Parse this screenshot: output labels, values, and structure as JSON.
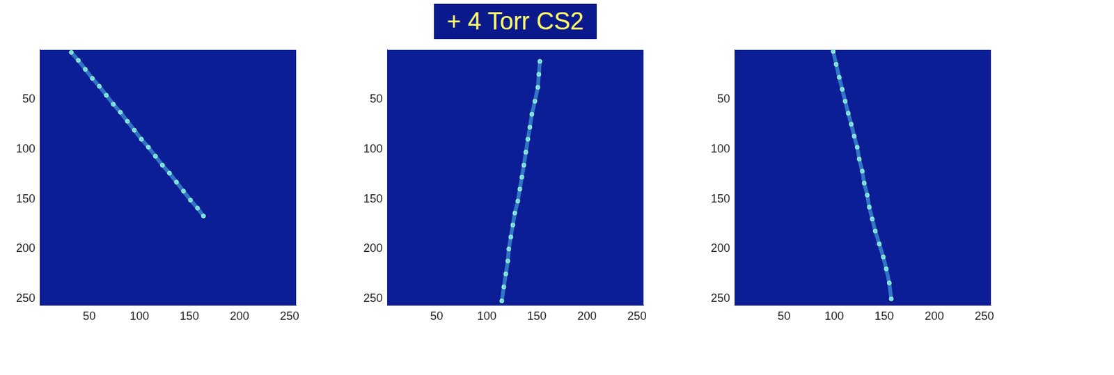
{
  "chart_data": [
    {
      "type": "scatter",
      "color": "#5fe3ff",
      "marker": "circle",
      "line_style": "solid",
      "grid": false,
      "x": [
        32,
        39,
        46,
        53,
        60,
        67,
        74,
        81,
        88,
        95,
        102,
        109,
        116,
        123,
        130,
        137,
        144,
        151,
        158,
        164
      ],
      "values": [
        3,
        11,
        20,
        29,
        37,
        46,
        55,
        63,
        72,
        81,
        90,
        98,
        107,
        116,
        124,
        133,
        142,
        151,
        159,
        167
      ],
      "xlim": [
        0.5,
        256.5
      ],
      "ylim": [
        256.5,
        0.5
      ],
      "xticks": [
        50,
        100,
        150,
        200,
        250
      ],
      "yticks": [
        50,
        100,
        150,
        200,
        250
      ]
    },
    {
      "type": "scatter",
      "title": "+ 4 Torr CS2",
      "color": "#5fe3ff",
      "marker": "circle",
      "line_style": "solid",
      "grid": false,
      "x": [
        153,
        152,
        151,
        148,
        145,
        143,
        141,
        139,
        137,
        135,
        133,
        131,
        128,
        126,
        124,
        122,
        121,
        119,
        117,
        115
      ],
      "values": [
        12,
        25,
        38,
        52,
        65,
        78,
        90,
        103,
        116,
        128,
        140,
        152,
        164,
        176,
        188,
        200,
        212,
        225,
        238,
        252
      ],
      "xlim": [
        0.5,
        256.5
      ],
      "ylim": [
        256.5,
        0.5
      ],
      "xticks": [
        50,
        100,
        150,
        200,
        250
      ],
      "yticks": [
        50,
        100,
        150,
        200,
        250
      ]
    },
    {
      "type": "scatter",
      "color": "#5fe3ff",
      "marker": "circle",
      "line_style": "solid",
      "grid": false,
      "x": [
        99,
        102,
        105,
        108,
        111,
        114,
        117,
        120,
        123,
        125,
        128,
        130,
        133,
        135,
        138,
        141,
        145,
        149,
        152,
        155,
        157
      ],
      "values": [
        2,
        15,
        28,
        40,
        52,
        64,
        75,
        87,
        98,
        110,
        122,
        134,
        146,
        158,
        170,
        182,
        195,
        208,
        220,
        234,
        250
      ],
      "xlim": [
        0.5,
        256.5
      ],
      "ylim": [
        256.5,
        0.5
      ],
      "xticks": [
        50,
        100,
        150,
        200,
        250
      ],
      "yticks": [
        50,
        100,
        150,
        200,
        250
      ]
    }
  ]
}
